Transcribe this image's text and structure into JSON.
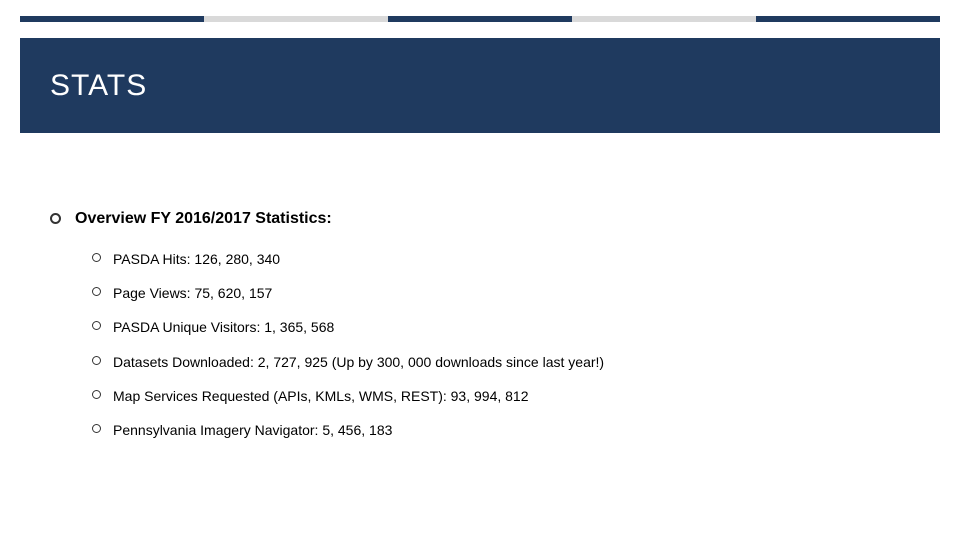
{
  "accent_colors": [
    "#1f3a5f",
    "#d9d9d9",
    "#1f3a5f",
    "#d9d9d9",
    "#1f3a5f"
  ],
  "title": "STATS",
  "title_band_color": "#1f3a5f",
  "main_heading": "Overview FY 2016/2017 Statistics:",
  "stats": [
    "PASDA Hits:  126, 280, 340",
    "Page Views: 75, 620, 157",
    "PASDA Unique Visitors: 1, 365, 568",
    "Datasets Downloaded: 2, 727, 925 (Up by 300, 000 downloads since last year!)",
    "Map Services Requested (APIs, KMLs, WMS, REST): 93, 994, 812",
    "Pennsylvania Imagery Navigator: 5, 456, 183"
  ]
}
